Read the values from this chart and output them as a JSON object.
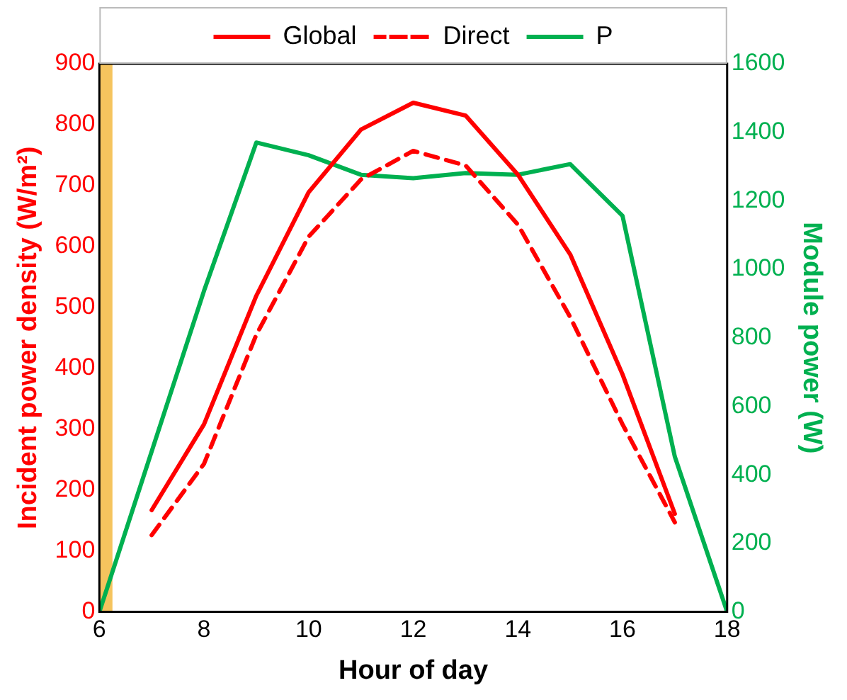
{
  "chart_data": {
    "type": "line",
    "xlabel": "Hour of day",
    "ylabel": "Incident power density (W/m²)",
    "y2label": "Module power (W)",
    "xlim": [
      6,
      18
    ],
    "xticks": [
      6,
      8,
      10,
      12,
      14,
      16,
      18
    ],
    "ylim": [
      0,
      900
    ],
    "yticks": [
      0,
      100,
      200,
      300,
      400,
      500,
      600,
      700,
      800,
      900
    ],
    "y2lim": [
      0,
      1600
    ],
    "y2ticks": [
      0,
      200,
      400,
      600,
      800,
      1000,
      1200,
      1400,
      1600
    ],
    "series": [
      {
        "name": "Global",
        "color": "#ff0000",
        "line_style": "solid",
        "x": [
          7,
          8,
          9,
          10,
          11,
          12,
          13,
          14,
          15,
          16,
          17
        ],
        "values": [
          167,
          308,
          519,
          689,
          792,
          836,
          815,
          718,
          587,
          390,
          161
        ]
      },
      {
        "name": "Direct",
        "color": "#ff0000",
        "line_style": "dashed",
        "x": [
          7,
          8,
          9,
          10,
          11,
          12,
          13,
          14,
          15,
          16,
          17
        ],
        "values": [
          126,
          243,
          455,
          616,
          710,
          757,
          733,
          636,
          484,
          308,
          147
        ]
      },
      {
        "name": "P",
        "color": "#00b050",
        "line_style": "solid",
        "axis": "y2",
        "x": [
          6,
          8,
          9,
          10,
          11,
          12,
          13,
          14,
          15,
          16,
          17,
          18
        ],
        "values": [
          0,
          937,
          1370,
          1333,
          1276,
          1266,
          1281,
          1276,
          1307,
          1156,
          453,
          0
        ]
      }
    ],
    "bands": [
      {
        "axis": "x",
        "from": 6,
        "to": 6.25,
        "color": "#f5c45e"
      }
    ],
    "grid": false,
    "legend": "top",
    "marker": "none"
  }
}
